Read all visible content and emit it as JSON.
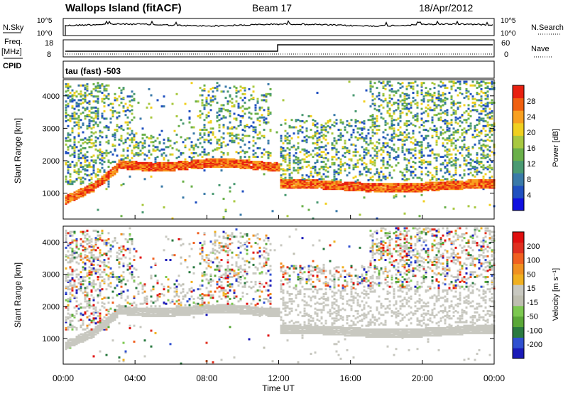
{
  "header": {
    "station": "Wallops Island (fitACF)",
    "beam": "Beam 17",
    "date": "18/Apr/2012"
  },
  "sky_panel": {
    "left_label": "N.Sky",
    "left_ticks": [
      "10^5",
      "10^0"
    ],
    "right_label": "N.Search",
    "right_ticks": [
      "10^5",
      "10^0"
    ],
    "level": 0.62
  },
  "freq_panel": {
    "left_label_1": "Freq.",
    "left_label_2": "[MHz]",
    "left_ticks": [
      "18",
      "8"
    ],
    "right_label": "Nave",
    "right_ticks": [
      "60",
      "0"
    ]
  },
  "cpid": {
    "label": "CPID",
    "mode": "tau (fast) -503"
  },
  "chart_data": [
    {
      "type": "heatmap",
      "name": "power",
      "ylabel": "Slant Range [km]",
      "y_ticks": [
        "4000",
        "3000",
        "2000",
        "1000"
      ],
      "y_tick_values": [
        4000,
        3000,
        2000,
        1000
      ],
      "ylim": [
        200,
        4500
      ],
      "colorbar_label": "Power [dB]",
      "colorbar_ticks": [
        "28",
        "24",
        "20",
        "16",
        "12",
        "8",
        "4"
      ],
      "colorbar_colors": [
        "#1010e0",
        "#2050c0",
        "#3a7aa8",
        "#4a9a72",
        "#6ab04a",
        "#a8c840",
        "#f0d020",
        "#f8a020",
        "#f06010",
        "#e82010"
      ],
      "colorbar_range": [
        0,
        32
      ]
    },
    {
      "type": "heatmap",
      "name": "velocity",
      "ylabel": "Slant Range [km]",
      "y_ticks": [
        "4000",
        "3000",
        "2000",
        "1000"
      ],
      "y_tick_values": [
        4000,
        3000,
        2000,
        1000
      ],
      "ylim": [
        200,
        4500
      ],
      "colorbar_label": "Velocity [m s⁻¹]",
      "colorbar_ticks": [
        "200",
        "100",
        "50",
        "15",
        "-15",
        "-50",
        "-100",
        "-200"
      ],
      "colorbar_colors": [
        "#1a1ab8",
        "#3050d0",
        "#2a7a40",
        "#5aa838",
        "#7cc850",
        "#bebeb0",
        "#c8c8c0",
        "#f0b020",
        "#f09020",
        "#f06020",
        "#e03020",
        "#e01010"
      ],
      "colorbar_range": [
        -250,
        250
      ]
    }
  ],
  "time_axis": {
    "label": "Time UT",
    "ticks": [
      "00:00",
      "04:00",
      "08:00",
      "12:00",
      "16:00",
      "20:00",
      "00:00"
    ],
    "xlim_hours": [
      0,
      24
    ]
  }
}
